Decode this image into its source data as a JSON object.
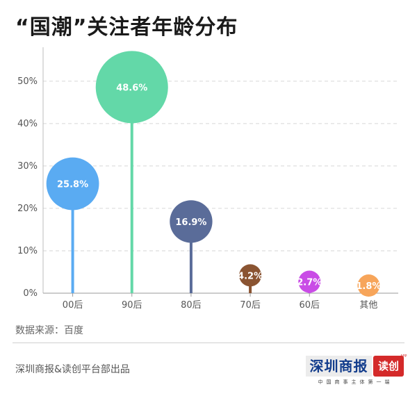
{
  "title": "“国潮”关注者年龄分布",
  "source": "数据来源：百度",
  "footer": "深圳商报&读创平台部出品",
  "logo": {
    "main_text": "深圳商报",
    "red_text": "读创",
    "app_text": "APP",
    "sub_text": "中国商事主体第一端"
  },
  "chart_data": {
    "type": "bubble-lollipop",
    "categories": [
      "00后",
      "90后",
      "80后",
      "70后",
      "60后",
      "其他"
    ],
    "values": [
      25.8,
      48.6,
      16.9,
      4.2,
      2.7,
      1.8
    ],
    "value_labels": [
      "25.8%",
      "48.6%",
      "16.9%",
      "4.2%",
      "2.7%",
      "1.8%"
    ],
    "colors": [
      "#5aabf2",
      "#63d8a8",
      "#5a6c99",
      "#8a5432",
      "#c94ce6",
      "#f7a55a"
    ],
    "y_ticks": [
      0,
      10,
      20,
      30,
      40,
      50
    ],
    "y_tick_labels": [
      "0%",
      "10%",
      "20%",
      "30%",
      "40%",
      "50%"
    ],
    "ylim": [
      0,
      58
    ],
    "grid": true,
    "xlabel": "",
    "ylabel": ""
  }
}
